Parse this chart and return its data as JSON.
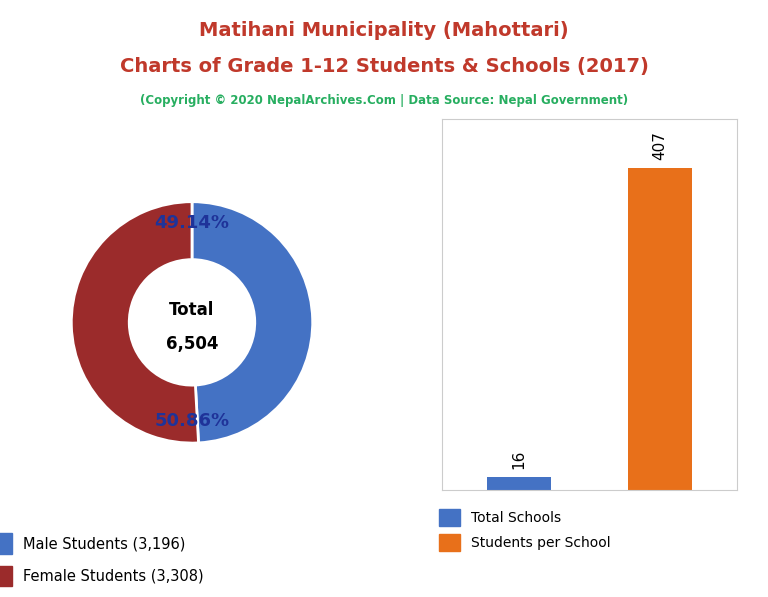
{
  "title_line1": "Matihani Municipality (Mahottari)",
  "title_line2": "Charts of Grade 1-12 Students & Schools (2017)",
  "subtitle": "(Copyright © 2020 NepalArchives.Com | Data Source: Nepal Government)",
  "male_students": 3196,
  "female_students": 3308,
  "total_students": 6504,
  "male_pct": 49.14,
  "female_pct": 50.86,
  "total_schools": 16,
  "students_per_school": 407,
  "male_color": "#4472C4",
  "female_color": "#9B2B2B",
  "bar_blue": "#4472C4",
  "bar_orange": "#E8701A",
  "title_color": "#C0392B",
  "subtitle_color": "#27AE60",
  "pct_color": "#1F3399",
  "background_color": "#FFFFFF"
}
